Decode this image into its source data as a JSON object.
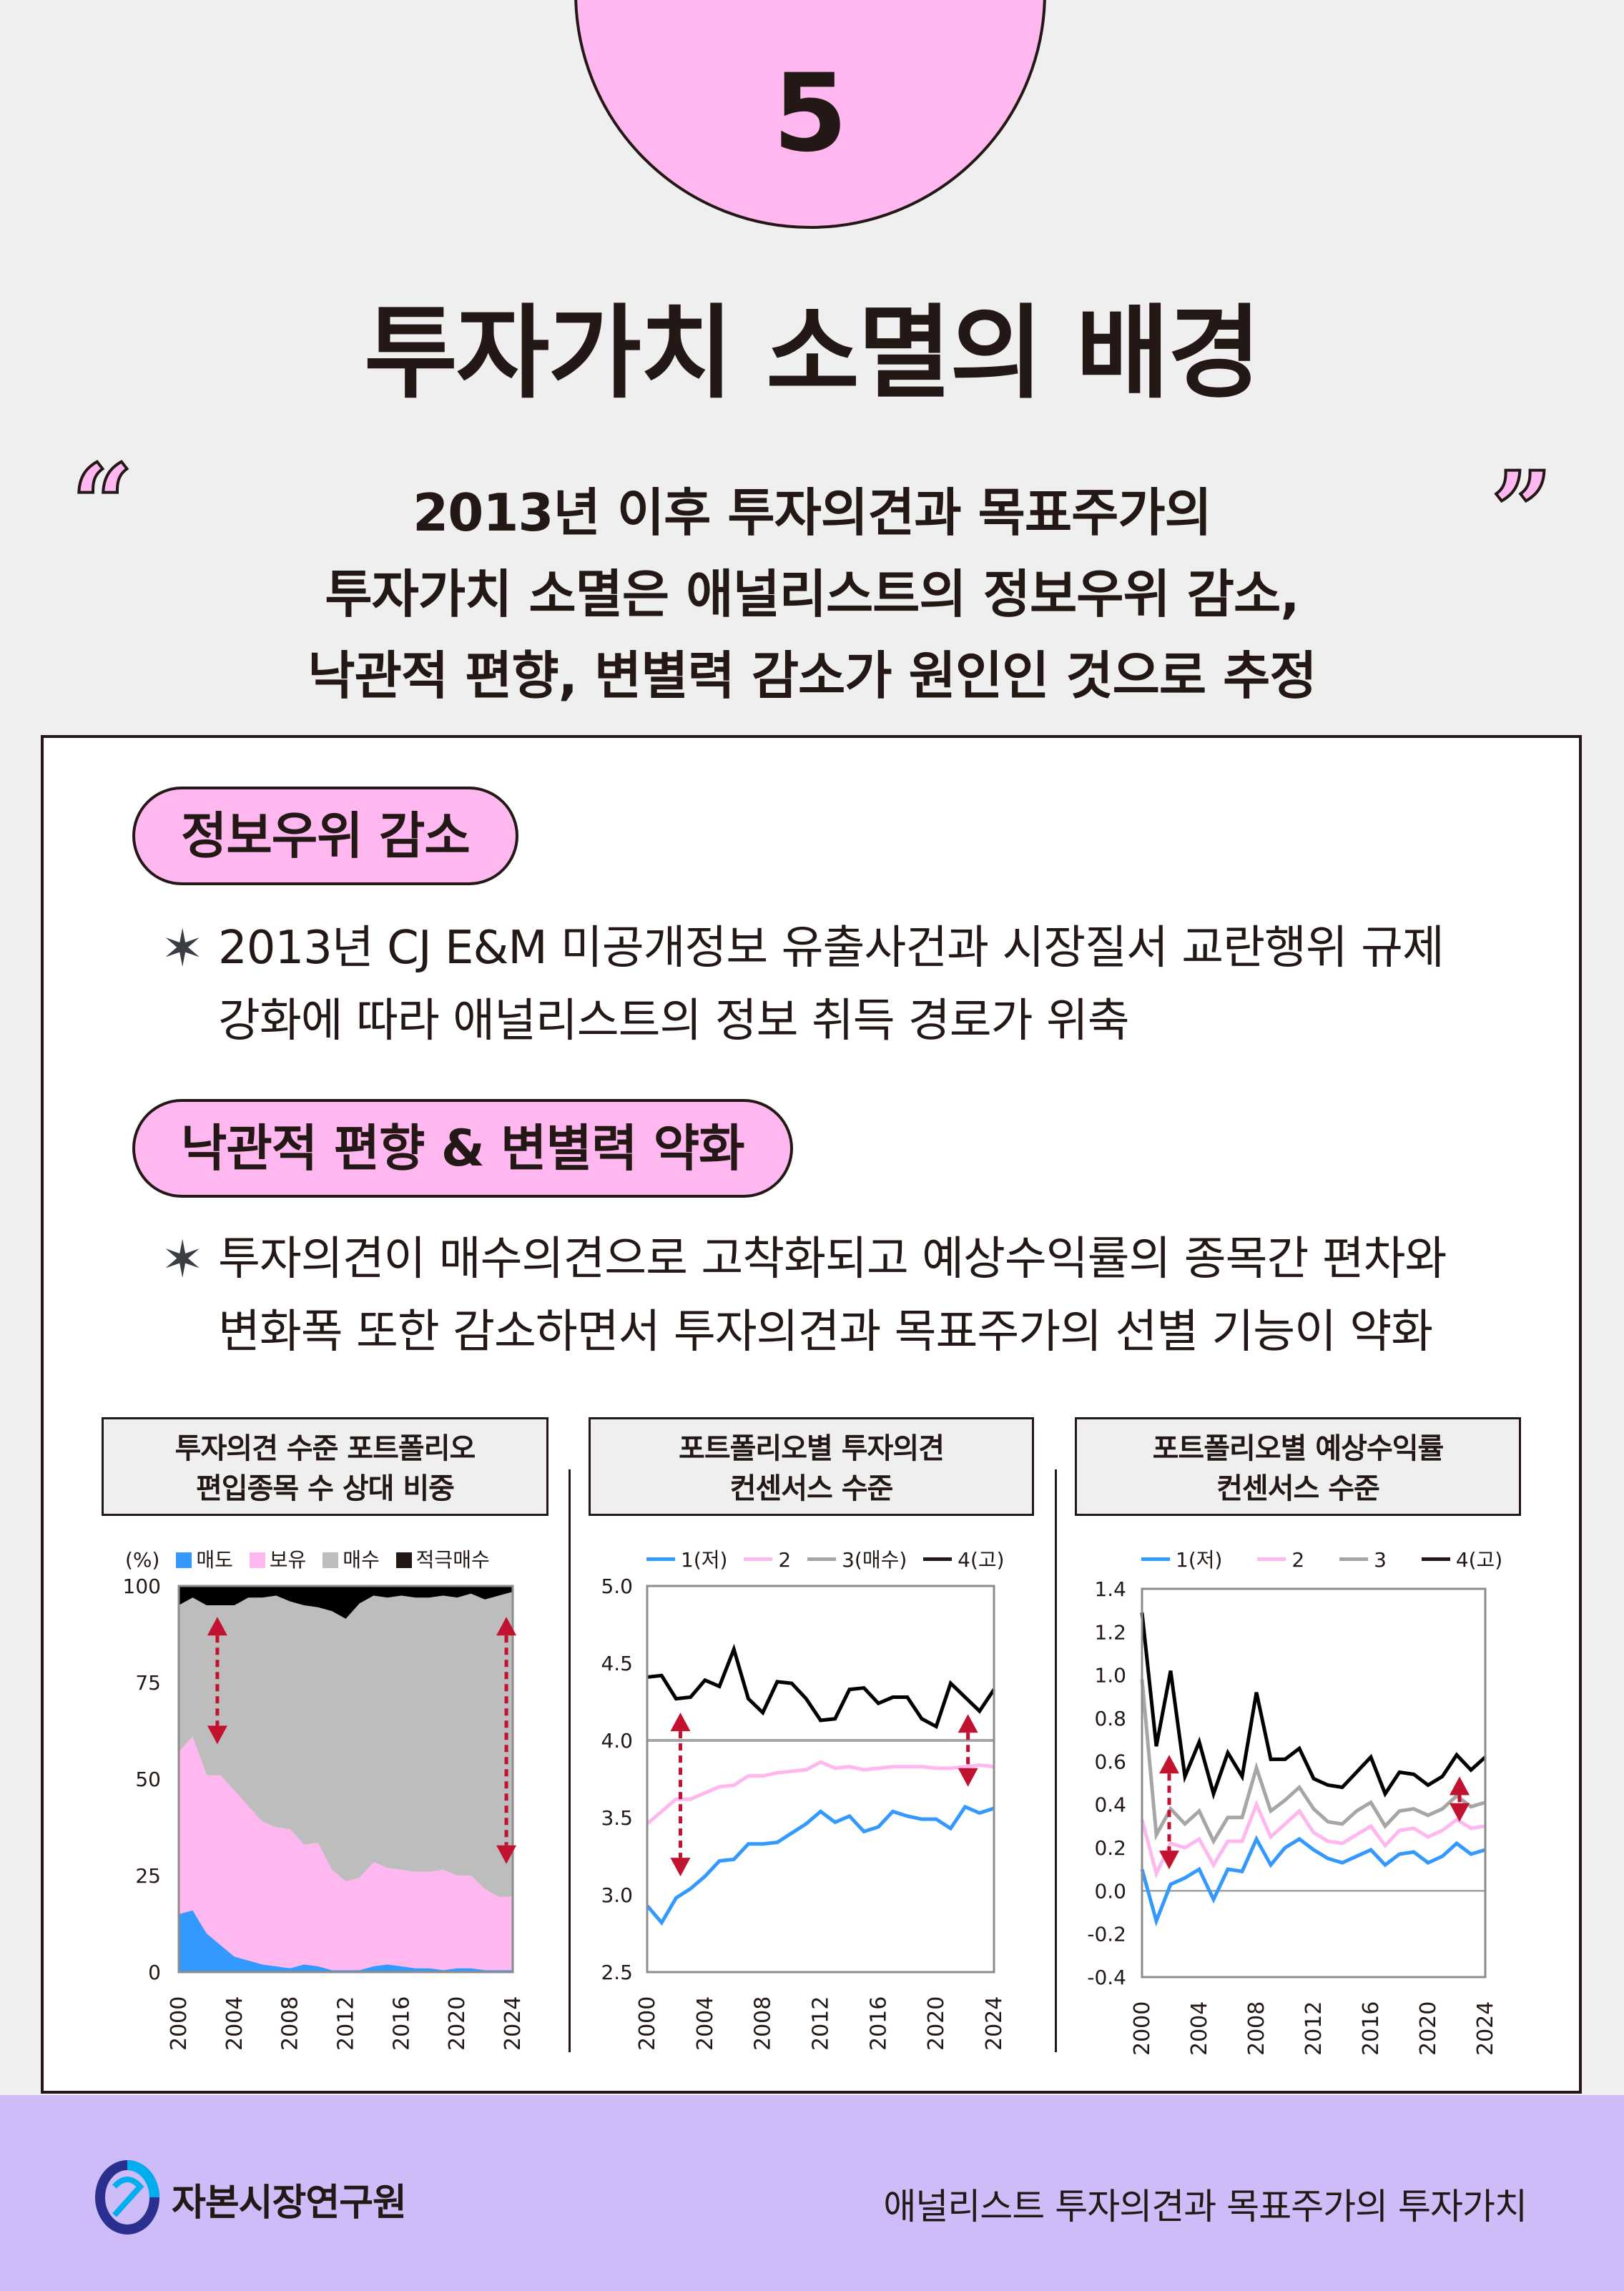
{
  "badge": {
    "number": "5"
  },
  "title": "투자가치 소멸의 배경",
  "summary": {
    "quote_open": "“",
    "quote_close": "”",
    "lines": [
      "2013년 이후 투자의견과 목표주가의",
      "투자가치 소멸은 애널리스트의 정보우위 감소,",
      "낙관적 편향, 변별력 감소가 원인인 것으로 추정"
    ]
  },
  "sections": [
    {
      "heading": "정보우위 감소",
      "bullet_icon": "sparkle-star-icon",
      "bullet_lines": [
        "2013년 CJ E&M 미공개정보 유출사건과 시장질서 교란행위 규제",
        "강화에 따라 애널리스트의 정보 취득 경로가 위축"
      ]
    },
    {
      "heading": "낙관적 편향 & 변별력 약화",
      "bullet_icon": "sparkle-star-icon",
      "bullet_lines": [
        "투자의견이 매수의견으로 고착화되고 예상수익률의 종목간 편차와",
        "변화폭 또한 감소하면서 투자의견과 목표주가의 선별 기능이 약화"
      ]
    }
  ],
  "colors": {
    "pink": "#ffb8ef",
    "blue": "#3399ff",
    "gray": "#bdbdbd",
    "black": "#000000",
    "arrow_red": "#c1122f",
    "footer_bg": "#cdbcf8",
    "page_bg": "#efefef"
  },
  "chart_data": [
    {
      "type": "area",
      "stacked": true,
      "title": "투자의견 수준 포트폴리오 편입종목 수 상대 비중",
      "title_lines": [
        "투자의견 수준 포트폴리오",
        "편입종목 수 상대 비중"
      ],
      "unit_label": "(%)",
      "x": [
        2000,
        2001,
        2002,
        2003,
        2004,
        2005,
        2006,
        2007,
        2008,
        2009,
        2010,
        2011,
        2012,
        2013,
        2014,
        2015,
        2016,
        2017,
        2018,
        2019,
        2020,
        2021,
        2022,
        2023,
        2024
      ],
      "xticks": [
        "2000",
        "2004",
        "2008",
        "2012",
        "2016",
        "2020",
        "2024"
      ],
      "yticks": [
        "0",
        "25",
        "50",
        "75",
        "100"
      ],
      "ylim": [
        0,
        100
      ],
      "series": [
        {
          "name": "매도",
          "color": "#3399ff",
          "values": [
            15,
            16,
            10,
            7,
            4,
            3,
            2,
            1.5,
            1,
            2,
            1.5,
            0.5,
            0.5,
            0.5,
            1.5,
            2,
            1.5,
            1,
            1,
            0.5,
            1,
            1,
            0.5,
            0.5,
            0.5
          ]
        },
        {
          "name": "보유",
          "color": "#ffb8ef",
          "values": [
            42,
            45,
            41,
            44,
            43,
            40,
            37,
            36,
            36,
            31,
            32,
            26,
            23,
            24,
            27,
            25,
            25,
            25,
            25,
            26,
            24,
            24,
            21,
            19,
            19
          ]
        },
        {
          "name": "매수",
          "color": "#bdbdbd",
          "values": [
            38,
            36,
            44,
            44,
            48,
            54,
            58,
            60,
            59,
            62,
            61,
            67,
            68,
            71,
            69,
            70,
            71,
            71,
            71,
            71,
            72,
            73,
            75,
            78,
            79
          ]
        },
        {
          "name": "적극매수",
          "color": "#000000",
          "values": [
            5,
            3,
            5,
            5,
            5,
            3,
            3,
            2.5,
            4,
            5,
            5.5,
            6.5,
            8.5,
            4.5,
            2.5,
            3,
            2.5,
            3,
            3,
            2.5,
            3,
            2,
            3.5,
            2.5,
            1.5
          ]
        }
      ],
      "annotations": [
        "double-arrow near 2002 (~92 to ~59)",
        "double-arrow near 2022 (~92 to ~29)"
      ],
      "legend_position": "top"
    },
    {
      "type": "line",
      "title": "포트폴리오별 투자의견 컨센서스 수준",
      "title_lines": [
        "포트폴리오별 투자의견",
        "컨센서스 수준"
      ],
      "x": [
        2000,
        2001,
        2002,
        2003,
        2004,
        2005,
        2006,
        2007,
        2008,
        2009,
        2010,
        2011,
        2012,
        2013,
        2014,
        2015,
        2016,
        2017,
        2018,
        2019,
        2020,
        2021,
        2022,
        2023,
        2024
      ],
      "xticks": [
        "2000",
        "2004",
        "2008",
        "2012",
        "2016",
        "2020",
        "2024"
      ],
      "yticks": [
        "2.5",
        "3.0",
        "3.5",
        "4.0",
        "4.5",
        "5.0"
      ],
      "ylim": [
        2.5,
        5.0
      ],
      "series": [
        {
          "name": "1(저)",
          "color": "#3399ff",
          "values": [
            2.93,
            2.82,
            2.98,
            3.04,
            3.12,
            3.22,
            3.23,
            3.33,
            3.33,
            3.34,
            3.4,
            3.46,
            3.54,
            3.47,
            3.51,
            3.41,
            3.44,
            3.54,
            3.51,
            3.49,
            3.49,
            3.43,
            3.57,
            3.53,
            3.56
          ]
        },
        {
          "name": "2",
          "color": "#ffb8ef",
          "values": [
            3.46,
            3.54,
            3.62,
            3.62,
            3.66,
            3.7,
            3.71,
            3.77,
            3.77,
            3.79,
            3.8,
            3.81,
            3.86,
            3.82,
            3.83,
            3.81,
            3.82,
            3.83,
            3.83,
            3.83,
            3.82,
            3.82,
            3.83,
            3.84,
            3.83
          ]
        },
        {
          "name": "3(매수)",
          "color": "#a6a6a6",
          "values": [
            4.0,
            4.0,
            4.0,
            4.0,
            4.0,
            4.0,
            4.0,
            4.0,
            4.0,
            4.0,
            4.0,
            4.0,
            4.0,
            4.0,
            4.0,
            4.0,
            4.0,
            4.0,
            4.0,
            4.0,
            4.0,
            4.0,
            4.0,
            4.0,
            4.0
          ]
        },
        {
          "name": "4(고)",
          "color": "#000000",
          "values": [
            4.41,
            4.42,
            4.27,
            4.28,
            4.39,
            4.35,
            4.59,
            4.27,
            4.18,
            4.38,
            4.37,
            4.27,
            4.13,
            4.14,
            4.33,
            4.34,
            4.24,
            4.28,
            4.28,
            4.14,
            4.09,
            4.37,
            4.28,
            4.19,
            4.33
          ]
        }
      ],
      "annotations": [
        "double-arrow near 2002 (~4.18 to ~3.12)",
        "double-arrow near 2023 (~4.17 to ~3.70)"
      ],
      "legend_position": "top"
    },
    {
      "type": "line",
      "title": "포트폴리오별 예상수익률 컨센서스 수준",
      "title_lines": [
        "포트폴리오별 예상수익률",
        "컨센서스 수준"
      ],
      "x": [
        2000,
        2001,
        2002,
        2003,
        2004,
        2005,
        2006,
        2007,
        2008,
        2009,
        2010,
        2011,
        2012,
        2013,
        2014,
        2015,
        2016,
        2017,
        2018,
        2019,
        2020,
        2021,
        2022,
        2023,
        2024
      ],
      "xticks": [
        "2000",
        "2004",
        "2008",
        "2012",
        "2016",
        "2020",
        "2024"
      ],
      "yticks": [
        "-0.4",
        "-0.2",
        "0.0",
        "0.2",
        "0.4",
        "0.6",
        "0.8",
        "1.0",
        "1.2",
        "1.4"
      ],
      "ylim": [
        -0.4,
        1.4
      ],
      "series": [
        {
          "name": "1(저)",
          "color": "#3399ff",
          "values": [
            0.1,
            -0.14,
            0.03,
            0.06,
            0.1,
            -0.04,
            0.1,
            0.09,
            0.24,
            0.12,
            0.2,
            0.24,
            0.19,
            0.15,
            0.13,
            0.16,
            0.19,
            0.12,
            0.17,
            0.18,
            0.13,
            0.16,
            0.22,
            0.17,
            0.19
          ]
        },
        {
          "name": "2",
          "color": "#ffb8ef",
          "values": [
            0.33,
            0.08,
            0.22,
            0.2,
            0.24,
            0.12,
            0.23,
            0.23,
            0.4,
            0.25,
            0.31,
            0.37,
            0.27,
            0.23,
            0.22,
            0.26,
            0.3,
            0.21,
            0.28,
            0.29,
            0.25,
            0.28,
            0.33,
            0.29,
            0.3
          ]
        },
        {
          "name": "3",
          "color": "#a6a6a6",
          "values": [
            0.98,
            0.26,
            0.38,
            0.31,
            0.37,
            0.23,
            0.34,
            0.34,
            0.57,
            0.37,
            0.42,
            0.48,
            0.38,
            0.32,
            0.31,
            0.37,
            0.41,
            0.3,
            0.37,
            0.38,
            0.35,
            0.38,
            0.44,
            0.39,
            0.41
          ]
        },
        {
          "name": "4(고)",
          "color": "#000000",
          "values": [
            1.29,
            0.67,
            1.02,
            0.53,
            0.69,
            0.45,
            0.64,
            0.53,
            0.92,
            0.61,
            0.61,
            0.66,
            0.52,
            0.49,
            0.48,
            0.55,
            0.62,
            0.45,
            0.55,
            0.54,
            0.49,
            0.53,
            0.63,
            0.56,
            0.62
          ]
        }
      ],
      "annotations": [
        "double-arrow near 2002 (~0.63 to ~0.10)",
        "double-arrow near 2023 (~0.52 to ~0.32)"
      ],
      "zero_line": true,
      "legend_position": "top"
    }
  ],
  "footer": {
    "org_name": "자본시장연구원",
    "doc_title": "애널리스트 투자의견과 목표주가의 투자가치"
  }
}
